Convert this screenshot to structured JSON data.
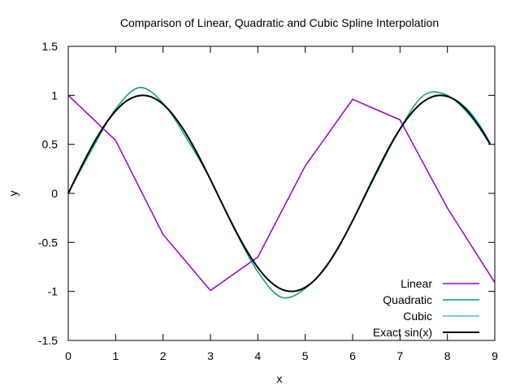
{
  "chart_data": {
    "type": "line",
    "title": "Comparison of Linear, Quadratic and Cubic Spline Interpolation",
    "xlabel": "x",
    "ylabel": "y",
    "xlim": [
      0,
      9
    ],
    "ylim": [
      -1.5,
      1.5
    ],
    "xticks": [
      0,
      1,
      2,
      3,
      4,
      5,
      6,
      7,
      8,
      9
    ],
    "yticks": [
      1.5,
      1,
      0.5,
      0,
      -0.5,
      -1,
      -1.5
    ],
    "ytick_labels": [
      "1.5",
      "1",
      "0.5",
      "0",
      "-0.5",
      "-1",
      "-1.5"
    ],
    "legend_position": "bottom-right",
    "grid": false,
    "series": [
      {
        "name": "Linear",
        "color": "#9400d3",
        "x": [
          0,
          1,
          2,
          3,
          4,
          5,
          6,
          7,
          8,
          9
        ],
        "y": [
          1.0,
          0.54,
          -0.42,
          -0.99,
          -0.65,
          0.28,
          0.96,
          0.75,
          -0.15,
          -0.91
        ]
      },
      {
        "name": "Quadratic",
        "color": "#009e73",
        "x": [
          0,
          0.5,
          1,
          1.5,
          2,
          2.5,
          3,
          3.5,
          4,
          4.5,
          5,
          5.5,
          6,
          6.5,
          7,
          7.5,
          8,
          8.5,
          8.9
        ],
        "y": [
          0,
          0.45,
          0.86,
          1.08,
          0.92,
          0.56,
          0.14,
          -0.36,
          -0.8,
          -1.06,
          -0.97,
          -0.7,
          -0.28,
          0.2,
          0.66,
          1.0,
          1.0,
          0.78,
          0.5
        ]
      },
      {
        "name": "Cubic",
        "color": "#56b4e9",
        "x": [
          0,
          0.5,
          1,
          1.5,
          2,
          2.5,
          3,
          3.5,
          4,
          4.5,
          5,
          5.5,
          6,
          6.5,
          7,
          7.5,
          8,
          8.5,
          8.9
        ],
        "y": [
          0,
          0.48,
          0.84,
          1.0,
          0.91,
          0.6,
          0.14,
          -0.35,
          -0.76,
          -0.98,
          -0.96,
          -0.71,
          -0.28,
          0.22,
          0.66,
          0.94,
          0.99,
          0.82,
          0.52
        ]
      },
      {
        "name": "Exact sin(x)",
        "color": "#000000",
        "x": [
          0,
          0.3,
          0.6,
          0.9,
          1.2,
          1.5,
          1.8,
          2.1,
          2.4,
          2.7,
          3.0,
          3.3,
          3.6,
          3.9,
          4.2,
          4.5,
          4.8,
          5.1,
          5.4,
          5.7,
          6.0,
          6.3,
          6.6,
          6.9,
          7.2,
          7.5,
          7.8,
          8.1,
          8.4,
          8.7,
          8.9
        ],
        "y": [
          0,
          0.296,
          0.565,
          0.783,
          0.932,
          0.997,
          0.974,
          0.863,
          0.675,
          0.427,
          0.141,
          -0.158,
          -0.443,
          -0.688,
          -0.872,
          -0.978,
          -0.996,
          -0.926,
          -0.773,
          -0.551,
          -0.279,
          0.017,
          0.312,
          0.578,
          0.794,
          0.938,
          0.999,
          0.97,
          0.855,
          0.663,
          0.501
        ]
      }
    ]
  }
}
